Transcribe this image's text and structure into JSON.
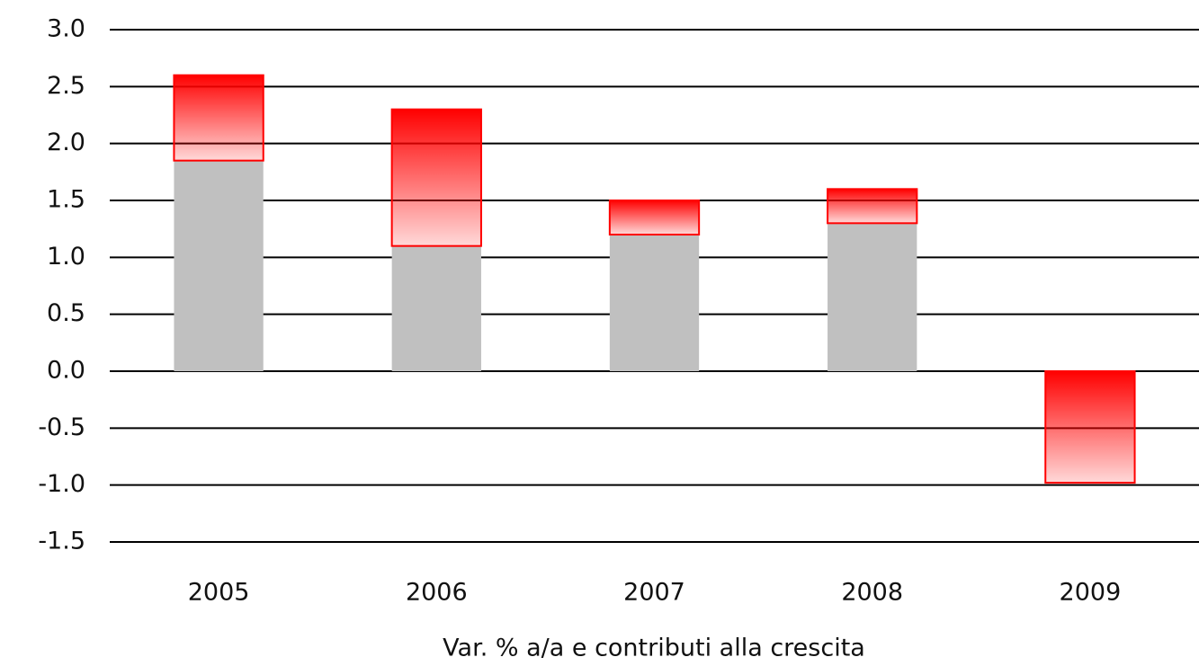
{
  "chart_data": {
    "type": "bar",
    "stacked": true,
    "x_label": "Var. % a/a e contributi alla crescita",
    "categories": [
      "2005",
      "2006",
      "2007",
      "2008",
      "2009"
    ],
    "series": [
      {
        "color": "#c0c0c0",
        "values": [
          1.85,
          1.1,
          1.2,
          1.3,
          0
        ]
      },
      {
        "color": "#ff0000",
        "gradient": true,
        "values": [
          0.75,
          1.2,
          0.3,
          0.3,
          -0.98
        ]
      }
    ],
    "ylim": [
      -1.5,
      3.0
    ],
    "yticks": [
      {
        "value": -1.5,
        "label": "-1.5"
      },
      {
        "value": -1.0,
        "label": "-1.0"
      },
      {
        "value": -0.5,
        "label": "-0.5"
      },
      {
        "value": 0,
        "label": "0.0"
      },
      {
        "value": 0.5,
        "label": "0.5"
      },
      {
        "value": 1.0,
        "label": "1.0"
      },
      {
        "value": 1.5,
        "label": "1.5"
      },
      {
        "value": 2.0,
        "label": "2.0"
      },
      {
        "value": 2.5,
        "label": "2.5"
      },
      {
        "value": 3.0,
        "label": "3.0"
      }
    ],
    "grid": true
  }
}
